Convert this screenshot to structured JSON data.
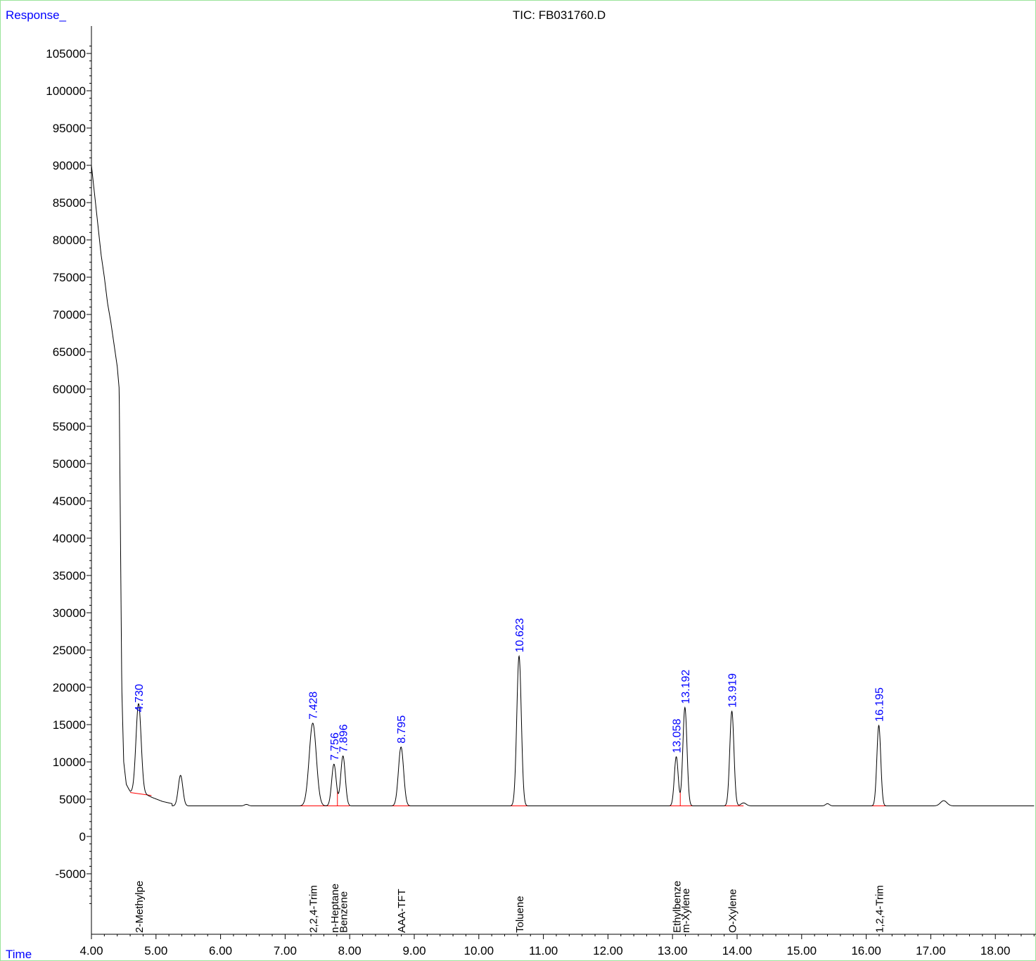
{
  "chart_data": {
    "type": "line",
    "title": "TIC: FB031760.D",
    "ylabel": "Response_",
    "xlabel": "Time",
    "xlim": [
      4.0,
      18.6
    ],
    "ylim": [
      -10000,
      108000
    ],
    "x_ticks": [
      "4.00",
      "5.00",
      "6.00",
      "7.00",
      "8.00",
      "9.00",
      "10.00",
      "11.00",
      "12.00",
      "13.00",
      "14.00",
      "15.00",
      "16.00",
      "17.00",
      "18.00"
    ],
    "y_ticks": [
      "-5000",
      "0",
      "5000",
      "10000",
      "15000",
      "20000",
      "25000",
      "30000",
      "35000",
      "40000",
      "45000",
      "50000",
      "55000",
      "60000",
      "65000",
      "70000",
      "75000",
      "80000",
      "85000",
      "90000",
      "95000",
      "100000",
      "105000"
    ],
    "baseline": 4100,
    "solvent_front": [
      [
        4.0,
        90000
      ],
      [
        4.05,
        86000
      ],
      [
        4.1,
        82000
      ],
      [
        4.15,
        78000
      ],
      [
        4.2,
        75000
      ],
      [
        4.25,
        71500
      ],
      [
        4.3,
        69000
      ],
      [
        4.35,
        66000
      ],
      [
        4.4,
        63000
      ],
      [
        4.43,
        60000
      ],
      [
        4.45,
        40000
      ],
      [
        4.47,
        20000
      ],
      [
        4.5,
        10000
      ],
      [
        4.54,
        7000
      ],
      [
        4.6,
        6000
      ],
      [
        4.65,
        5800
      ],
      [
        4.85,
        5600
      ],
      [
        4.95,
        5200
      ],
      [
        5.1,
        4700
      ],
      [
        5.25,
        4400
      ]
    ],
    "peaks": [
      {
        "rt": 4.73,
        "height": 16200,
        "width": 0.04,
        "label": "4.730",
        "compound": "2-Methylpe"
      },
      {
        "rt": 5.38,
        "height": 8200,
        "width": 0.035,
        "label": "",
        "compound": ""
      },
      {
        "rt": 6.4,
        "height": 4300,
        "width": 0.03,
        "label": "",
        "compound": ""
      },
      {
        "rt": 7.428,
        "height": 15200,
        "width": 0.055,
        "label": "7.428",
        "compound": "2,2,4-Trim"
      },
      {
        "rt": 7.756,
        "height": 9700,
        "width": 0.035,
        "label": "7.756",
        "compound": "n-Heptane"
      },
      {
        "rt": 7.896,
        "height": 10800,
        "width": 0.035,
        "label": "7.896",
        "compound": "Benzene"
      },
      {
        "rt": 8.795,
        "height": 12000,
        "width": 0.04,
        "label": "8.795",
        "compound": "AAA-TFT"
      },
      {
        "rt": 10.623,
        "height": 24200,
        "width": 0.035,
        "label": "10.623",
        "compound": "Toluene"
      },
      {
        "rt": 13.058,
        "height": 10700,
        "width": 0.03,
        "label": "13.058",
        "compound": "Ethylbenze"
      },
      {
        "rt": 13.192,
        "height": 17300,
        "width": 0.032,
        "label": "13.192",
        "compound": "m-Xylene"
      },
      {
        "rt": 13.919,
        "height": 16800,
        "width": 0.032,
        "label": "13.919",
        "compound": "O-Xylene"
      },
      {
        "rt": 14.1,
        "height": 4500,
        "width": 0.04,
        "label": "",
        "compound": ""
      },
      {
        "rt": 15.4,
        "height": 4400,
        "width": 0.03,
        "label": "",
        "compound": ""
      },
      {
        "rt": 16.195,
        "height": 14900,
        "width": 0.03,
        "label": "16.195",
        "compound": "1,2,4-Trim"
      },
      {
        "rt": 17.2,
        "height": 4800,
        "width": 0.05,
        "label": "",
        "compound": ""
      }
    ],
    "integration_baselines": [
      {
        "x": [
          4.6,
          4.93
        ],
        "y": [
          5900,
          5500
        ]
      },
      {
        "x": [
          7.2,
          7.62
        ],
        "y": [
          4100,
          4100
        ]
      },
      {
        "x": [
          7.62,
          8.0
        ],
        "y": [
          4100,
          4100
        ]
      },
      {
        "x": [
          8.6,
          9.0
        ],
        "y": [
          4100,
          4100
        ]
      },
      {
        "x": [
          10.45,
          10.9
        ],
        "y": [
          4100,
          4100
        ]
      },
      {
        "x": [
          12.9,
          13.55
        ],
        "y": [
          4100,
          4100
        ]
      },
      {
        "x": [
          13.75,
          14.1
        ],
        "y": [
          4100,
          4100
        ]
      },
      {
        "x": [
          16.0,
          16.4
        ],
        "y": [
          4100,
          4100
        ]
      }
    ],
    "peak_dividers": [
      7.81,
      13.12
    ],
    "colors": {
      "trace": "#000000",
      "axis": "#000000",
      "rt_label": "#0000ff",
      "baseline": "#ff0000",
      "axis_title": "#0000ff",
      "frame": "#9be39b"
    }
  }
}
